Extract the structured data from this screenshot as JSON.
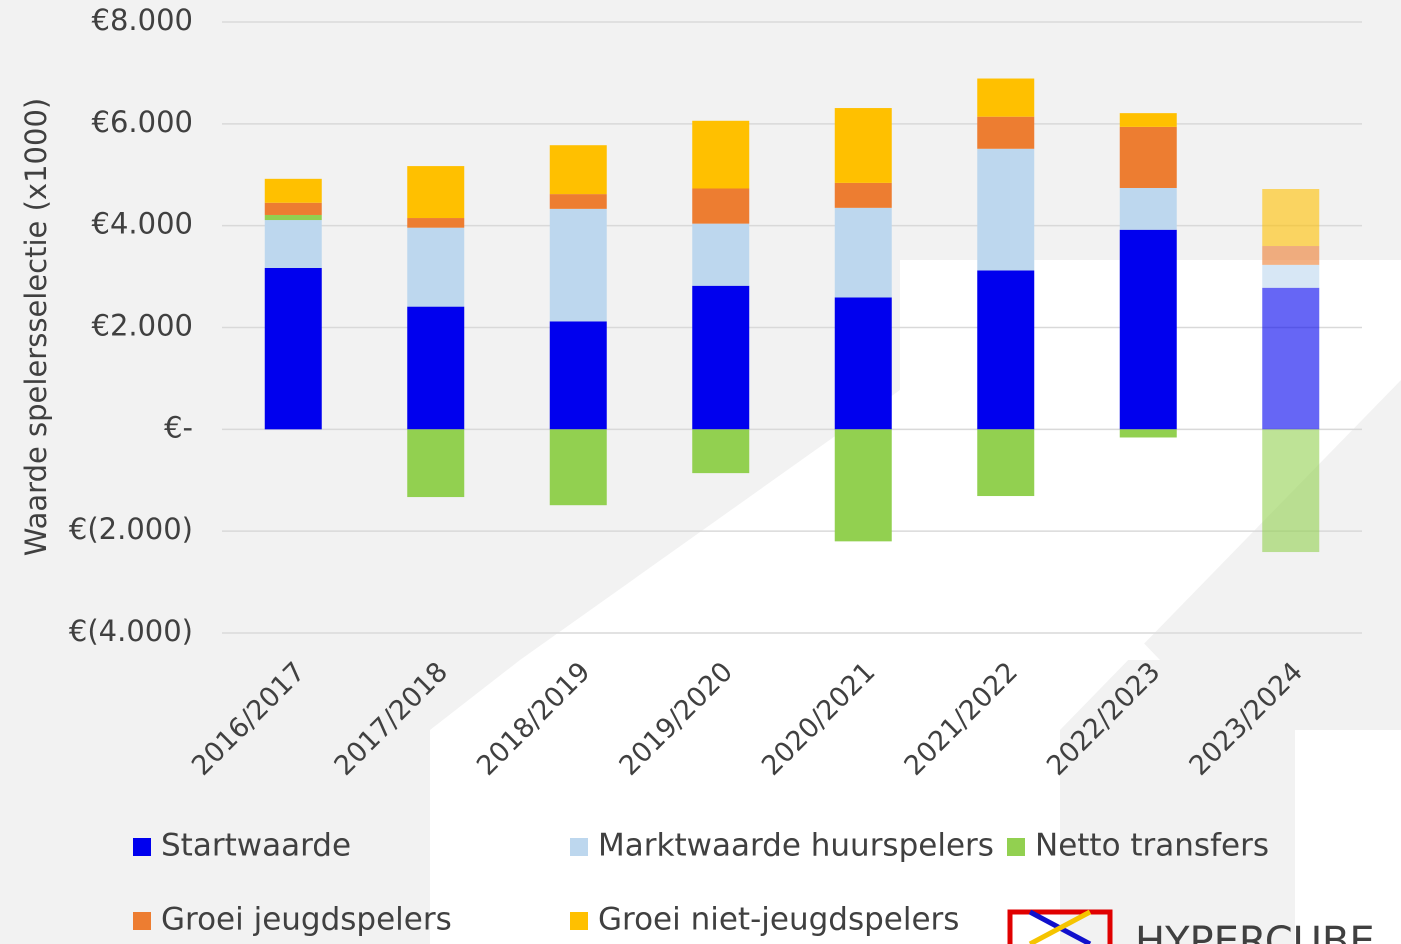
{
  "chart_data": {
    "type": "stacked_bar",
    "y_axis_label": "Waarde spelersselectie (x1000)",
    "categories": [
      "2016/2017",
      "2017/2018",
      "2018/2019",
      "2019/2020",
      "2020/2021",
      "2021/2022",
      "2022/2023",
      "2023/2024"
    ],
    "series": [
      {
        "name": "Startwaarde",
        "color": "#0000ee",
        "values": [
          3170,
          2410,
          2120,
          2820,
          2590,
          3120,
          3920,
          2780
        ]
      },
      {
        "name": "Marktwaarde huurspelers",
        "color": "#bdd7ee",
        "values": [
          940,
          1550,
          2210,
          1220,
          1760,
          2390,
          820,
          450
        ]
      },
      {
        "name": "Netto transfers",
        "color": "#92d050",
        "values": [
          100,
          -1330,
          -1490,
          -860,
          -2200,
          -1310,
          -160,
          -2410
        ]
      },
      {
        "name": "Groei jeugdspelers",
        "color": "#ed7d31",
        "values": [
          240,
          190,
          290,
          690,
          490,
          630,
          1200,
          370
        ]
      },
      {
        "name": "Groei niet-jeugdspelers",
        "color": "#ffc000",
        "values": [
          470,
          1020,
          960,
          1330,
          1470,
          750,
          270,
          1120
        ]
      }
    ],
    "faded": [
      false,
      false,
      false,
      false,
      false,
      false,
      false,
      true
    ],
    "ylim": [
      -4000,
      8000
    ],
    "yticks": [
      {
        "value": -4000,
        "label": "€(4.000)"
      },
      {
        "value": -2000,
        "label": "€(2.000)"
      },
      {
        "value": 0,
        "label": "€-"
      },
      {
        "value": 2000,
        "label": "€2.000"
      },
      {
        "value": 4000,
        "label": "€4.000"
      },
      {
        "value": 6000,
        "label": "€6.000"
      },
      {
        "value": 8000,
        "label": "€8.000"
      }
    ],
    "grid": true,
    "logo_text": "HYPERCUBE"
  }
}
